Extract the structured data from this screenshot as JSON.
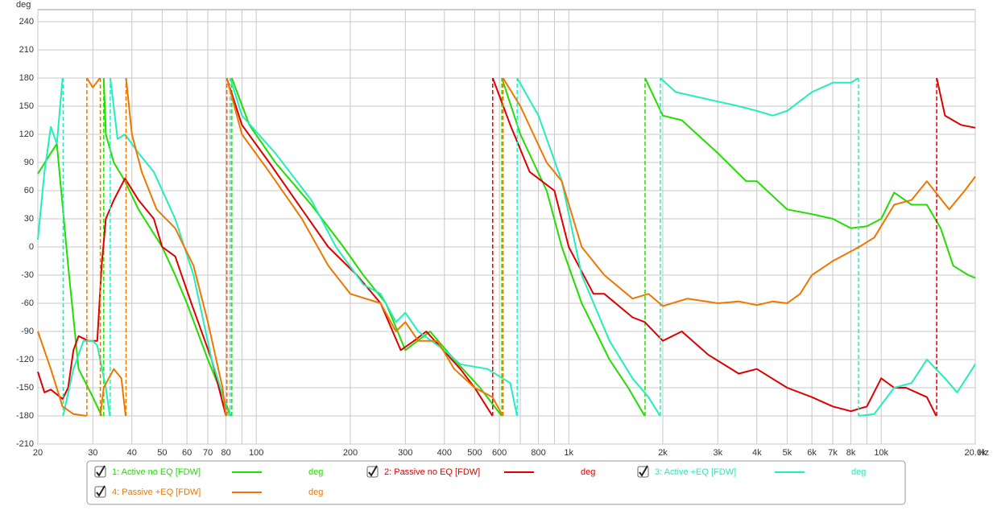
{
  "chart_data": {
    "type": "line",
    "y_label": "deg",
    "x_unit": "Hz",
    "log_x": true,
    "grid": true,
    "xlim": [
      20,
      20000
    ],
    "ylim": [
      -210,
      240
    ],
    "yticks": [
      -210,
      -180,
      -150,
      -120,
      -90,
      -60,
      -30,
      0,
      30,
      60,
      90,
      120,
      150,
      180,
      210,
      240
    ],
    "xticks": [
      20,
      30,
      40,
      50,
      60,
      70,
      80,
      100,
      200,
      300,
      400,
      500,
      600,
      800,
      {
        "value": 1000,
        "label": "1k"
      },
      {
        "value": 2000,
        "label": "2k"
      },
      {
        "value": 3000,
        "label": "3k"
      },
      {
        "value": 4000,
        "label": "4k"
      },
      {
        "value": 5000,
        "label": "5k"
      },
      {
        "value": 6000,
        "label": "6k"
      },
      {
        "value": 7000,
        "label": "7k"
      },
      {
        "value": 8000,
        "label": "8k"
      },
      {
        "value": 10000,
        "label": "10k"
      },
      {
        "value": 20000,
        "label": "20.0k"
      }
    ],
    "xminor_grid": [
      90,
      700,
      900,
      9000
    ],
    "series": [
      {
        "name": "1: Active no EQ [FDW]",
        "unit": "deg",
        "color": "#22dd00",
        "x": [
          20,
          22,
          23,
          25,
          27,
          30,
          32,
          32.5,
          33,
          35,
          38,
          42,
          50,
          55,
          60,
          70,
          83,
          83.5,
          95,
          115,
          150,
          190,
          220,
          260,
          300,
          360,
          430,
          520,
          610,
          611,
          700,
          850,
          950,
          1100,
          1350,
          1550,
          1750,
          1755,
          2000,
          2300,
          3000,
          3700,
          4000,
          5000,
          6000,
          7000,
          8000,
          9000,
          10000,
          11000,
          12500,
          14000,
          15500,
          17000,
          19000,
          20000
        ],
        "values": [
          78,
          100,
          110,
          -20,
          -130,
          -160,
          -180,
          180,
          120,
          90,
          70,
          40,
          0,
          -30,
          -60,
          -120,
          -180,
          180,
          130,
          90,
          45,
          0,
          -30,
          -60,
          -110,
          -90,
          -120,
          -150,
          -180,
          180,
          120,
          60,
          0,
          -60,
          -120,
          -150,
          -180,
          180,
          140,
          135,
          100,
          70,
          70,
          40,
          35,
          30,
          20,
          22,
          30,
          58,
          45,
          45,
          20,
          -20,
          -30,
          -33
        ]
      },
      {
        "name": "2: Passive no EQ [FDW]",
        "unit": "deg",
        "color": "#dd0000",
        "x": [
          20,
          21,
          22,
          24,
          25,
          26,
          27,
          29,
          30,
          31,
          32,
          33,
          35,
          38,
          42,
          47,
          50,
          55,
          62,
          72,
          80,
          80.5,
          90,
          110,
          140,
          170,
          210,
          250,
          290,
          320,
          350,
          450,
          500,
          570,
          571,
          650,
          750,
          900,
          1000,
          1200,
          1300,
          1600,
          1750,
          2000,
          2300,
          2800,
          3500,
          4000,
          5000,
          6000,
          7000,
          8000,
          9000,
          10000,
          11000,
          12000,
          14000,
          15000,
          15050,
          16000,
          18000,
          20000
        ],
        "values": [
          -133,
          -155,
          -152,
          -162,
          -150,
          -110,
          -95,
          -100,
          -100,
          -100,
          -20,
          30,
          50,
          73,
          50,
          30,
          0,
          -10,
          -60,
          -120,
          -180,
          180,
          130,
          90,
          40,
          0,
          -30,
          -60,
          -110,
          -100,
          -90,
          -130,
          -150,
          -180,
          180,
          130,
          80,
          60,
          0,
          -50,
          -50,
          -75,
          -80,
          -100,
          -90,
          -115,
          -135,
          -130,
          -150,
          -160,
          -170,
          -175,
          -170,
          -140,
          -150,
          -150,
          -160,
          -180,
          180,
          140,
          130,
          127
        ]
      },
      {
        "name": "3: Active +EQ [FDW]",
        "unit": "deg",
        "color": "#22eebb",
        "x": [
          20,
          21,
          22,
          23,
          24,
          24.1,
          26,
          28,
          30,
          31,
          33,
          34,
          34.1,
          36,
          38,
          42,
          47,
          55,
          63,
          72,
          82,
          82.5,
          90,
          115,
          150,
          180,
          220,
          250,
          280,
          300,
          330,
          400,
          450,
          550,
          650,
          683,
          684,
          800,
          950,
          1100,
          1350,
          1600,
          1800,
          1960,
          1963,
          2200,
          3000,
          3500,
          4000,
          4500,
          5000,
          6000,
          7000,
          8000,
          8450,
          8460,
          9500,
          11000,
          12500,
          14000,
          16000,
          17500,
          20000
        ],
        "values": [
          8,
          80,
          128,
          110,
          180,
          -180,
          -130,
          -100,
          -100,
          -105,
          -150,
          -180,
          180,
          115,
          120,
          100,
          80,
          30,
          -30,
          -120,
          -180,
          180,
          140,
          100,
          50,
          0,
          -40,
          -50,
          -80,
          -70,
          -90,
          -110,
          -125,
          -130,
          -145,
          -180,
          180,
          140,
          70,
          -30,
          -100,
          -140,
          -160,
          -180,
          180,
          165,
          155,
          150,
          145,
          140,
          145,
          165,
          175,
          175,
          180,
          -180,
          -178,
          -150,
          -145,
          -120,
          -140,
          -155,
          -125
        ]
      },
      {
        "name": "4: Passive +EQ [FDW]",
        "unit": "deg",
        "color": "#ee7700",
        "x": [
          20,
          22,
          24,
          26,
          28.6,
          28.7,
          30,
          31.6,
          31.7,
          32.5,
          35,
          37,
          38.2,
          38.3,
          40,
          43,
          48,
          55,
          63,
          70,
          78,
          80,
          80.5,
          90,
          110,
          140,
          170,
          200,
          250,
          280,
          300,
          330,
          380,
          430,
          500,
          570,
          615,
          616,
          700,
          850,
          950,
          1100,
          1300,
          1600,
          1800,
          2000,
          2400,
          3000,
          3500,
          4000,
          4500,
          5000,
          5500,
          6000,
          7000,
          8500,
          9500,
          11000,
          12500,
          14000,
          16500,
          18500,
          20000
        ],
        "values": [
          -90,
          -130,
          -170,
          -178,
          -180,
          180,
          170,
          180,
          -180,
          -150,
          -130,
          -140,
          -180,
          180,
          120,
          80,
          40,
          20,
          -20,
          -80,
          -150,
          -180,
          180,
          120,
          80,
          30,
          -20,
          -50,
          -60,
          -90,
          -80,
          -100,
          -100,
          -130,
          -150,
          -160,
          -180,
          180,
          150,
          90,
          70,
          0,
          -30,
          -55,
          -50,
          -63,
          -55,
          -60,
          -58,
          -62,
          -58,
          -60,
          -50,
          -30,
          -15,
          0,
          10,
          45,
          50,
          70,
          40,
          60,
          75
        ]
      }
    ]
  }
}
